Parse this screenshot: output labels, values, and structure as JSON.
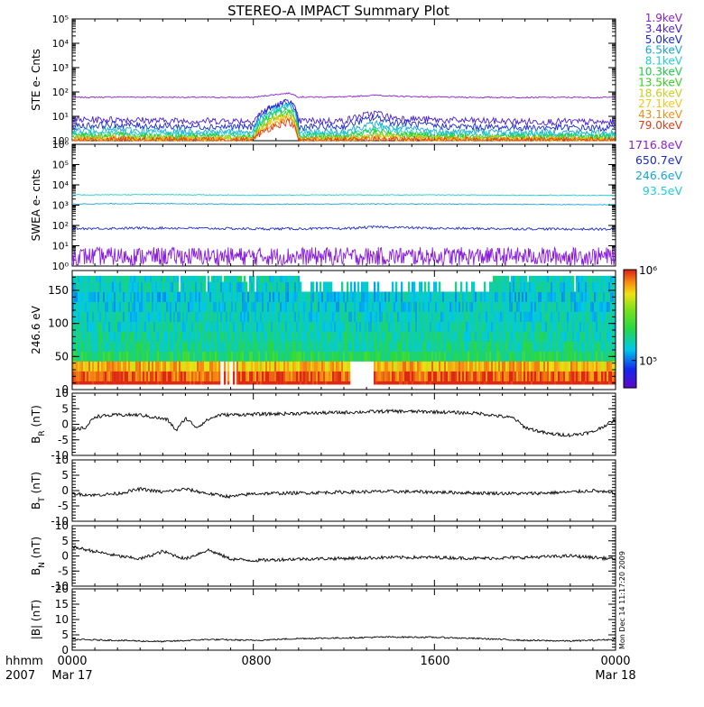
{
  "title": "STEREO-A IMPACT Summary Plot",
  "footer": {
    "time_label": "hhmm",
    "year": "2007",
    "time_ticks": [
      "0000",
      "0800",
      "1600",
      "0000"
    ],
    "date_start": "Mar 17",
    "date_end": "Mar 18"
  },
  "credit": "Mon Dec 14 11:17:20 2009",
  "colors": {
    "ste": [
      "#8a1ddb",
      "#4b1ed6",
      "#1a2ad0",
      "#13a6d9",
      "#1ccfd6",
      "#1ccc45",
      "#32d11c",
      "#c7d01b",
      "#f5c619",
      "#f08d16",
      "#e03a17"
    ],
    "swea": [
      "#8a1ddb",
      "#1a2ad0",
      "#13a6d9",
      "#1ccfd6"
    ]
  },
  "chart_data": [
    {
      "type": "line",
      "panel": "ste",
      "ylabel": "STE e- Cnts",
      "yscale": "log",
      "ylim": [
        1,
        100000
      ],
      "ytick_labels": [
        "10⁰",
        "10¹",
        "10²",
        "10³",
        "10⁴",
        "10⁵"
      ],
      "x_units": "hours since Mar 17 0000",
      "xlim": [
        0,
        24
      ],
      "series": [
        {
          "name": "1.9keV",
          "x": [
            0,
            2,
            4,
            6,
            8,
            9.6,
            10,
            12,
            13.5,
            14,
            16,
            18,
            20,
            22,
            24
          ],
          "values": [
            60,
            62,
            61,
            60,
            60,
            90,
            62,
            62,
            75,
            68,
            62,
            60,
            60,
            60,
            60
          ]
        },
        {
          "name": "3.4keV",
          "x": [
            0,
            2,
            4,
            6,
            8,
            9.6,
            10,
            12,
            13.5,
            14,
            16,
            18,
            20,
            22,
            24
          ],
          "values": [
            7,
            7.5,
            6.5,
            6.5,
            6.5,
            40,
            6.5,
            6.5,
            14,
            9,
            7,
            6.5,
            6,
            6,
            5.5
          ]
        },
        {
          "name": "5.0keV",
          "x": [
            0,
            2,
            4,
            6,
            8,
            9.6,
            10,
            12,
            13.5,
            14,
            16,
            18,
            20,
            22,
            24
          ],
          "values": [
            4,
            4.5,
            3.8,
            3.8,
            3.6,
            40,
            3.6,
            3.8,
            9,
            6,
            4,
            3.6,
            3.5,
            3.4,
            3.2
          ]
        },
        {
          "name": "6.5keV",
          "x": [
            0,
            2,
            4,
            6,
            8,
            9.6,
            10,
            12,
            13.5,
            14,
            16,
            18,
            20,
            22,
            24
          ],
          "values": [
            2.6,
            2.8,
            2.4,
            2.4,
            2.3,
            30,
            2.3,
            2.4,
            5,
            3.5,
            2.5,
            2.3,
            2.2,
            2.2,
            2
          ]
        },
        {
          "name": "8.1keV",
          "x": [
            0,
            2,
            4,
            6,
            8,
            9.6,
            10,
            12,
            13.5,
            14,
            16,
            18,
            20,
            22,
            24
          ],
          "values": [
            2,
            2.1,
            1.9,
            1.9,
            1.8,
            25,
            1.8,
            1.9,
            3.5,
            2.6,
            2,
            1.8,
            1.8,
            1.7,
            1.6
          ]
        },
        {
          "name": "10.3keV",
          "x": [
            0,
            2,
            4,
            6,
            8,
            9.6,
            10,
            12,
            13.5,
            14,
            16,
            18,
            20,
            22,
            24
          ],
          "values": [
            1.6,
            1.7,
            1.5,
            1.5,
            1.5,
            20,
            1.5,
            1.5,
            2.6,
            2,
            1.6,
            1.5,
            1.5,
            1.4,
            1.4
          ]
        },
        {
          "name": "13.5keV",
          "x": [
            0,
            2,
            4,
            6,
            8,
            9.6,
            10,
            12,
            13.5,
            14,
            16,
            18,
            20,
            22,
            24
          ],
          "values": [
            1.4,
            1.5,
            1.3,
            1.3,
            1.3,
            15,
            1.3,
            1.3,
            2,
            1.7,
            1.4,
            1.3,
            1.3,
            1.3,
            1.2
          ]
        },
        {
          "name": "18.6keV",
          "x": [
            0,
            2,
            4,
            6,
            8,
            9.6,
            10,
            12,
            13.5,
            14,
            16,
            18,
            20,
            22,
            24
          ],
          "values": [
            1.2,
            1.3,
            1.2,
            1.2,
            1.2,
            12,
            1.2,
            1.2,
            1.6,
            1.4,
            1.2,
            1.2,
            1.2,
            1.1,
            1.1
          ]
        },
        {
          "name": "27.1keV",
          "x": [
            0,
            2,
            4,
            6,
            8,
            9.6,
            10,
            12,
            13.5,
            14,
            16,
            18,
            20,
            22,
            24
          ],
          "values": [
            1.1,
            1.2,
            1.1,
            1.1,
            1.1,
            10,
            1.1,
            1.1,
            1.3,
            1.2,
            1.1,
            1.1,
            1.1,
            1.1,
            1.05
          ]
        },
        {
          "name": "43.1keV",
          "x": [
            0,
            2,
            4,
            6,
            8,
            9.6,
            10,
            12,
            13.5,
            14,
            16,
            18,
            20,
            22,
            24
          ],
          "values": [
            1.05,
            1.1,
            1.05,
            1.05,
            1.05,
            8,
            1.05,
            1.05,
            1.2,
            1.1,
            1.05,
            1.05,
            1.05,
            1.05,
            1.02
          ]
        },
        {
          "name": "79.0keV",
          "x": [
            0,
            2,
            4,
            6,
            8,
            9.6,
            10,
            12,
            13.5,
            14,
            16,
            18,
            20,
            22,
            24
          ],
          "values": [
            1.02,
            1.05,
            1.02,
            1.02,
            1.02,
            6,
            1.02,
            1.02,
            1.1,
            1.05,
            1.02,
            1.02,
            1.02,
            1.02,
            1.01
          ]
        }
      ]
    },
    {
      "type": "line",
      "panel": "swea",
      "ylabel": "SWEA e- cnts",
      "yscale": "log",
      "ylim": [
        1,
        1000000
      ],
      "ytick_labels": [
        "10⁰",
        "10¹",
        "10²",
        "10³",
        "10⁴",
        "10⁵",
        "10⁶"
      ],
      "x_units": "hours since Mar 17 0000",
      "xlim": [
        0,
        24
      ],
      "series": [
        {
          "name": "1716.8eV",
          "x": [
            0,
            4,
            8,
            12,
            16,
            20,
            24
          ],
          "values": [
            3,
            3,
            3,
            3,
            3,
            3,
            3
          ]
        },
        {
          "name": "650.7eV",
          "x": [
            0,
            4,
            8,
            12,
            13.5,
            16,
            20,
            24
          ],
          "values": [
            70,
            75,
            68,
            70,
            85,
            72,
            68,
            65
          ]
        },
        {
          "name": "246.6eV",
          "x": [
            0,
            4,
            8,
            12,
            16,
            20,
            24
          ],
          "values": [
            1150,
            1200,
            1100,
            1150,
            1150,
            1100,
            1050
          ]
        },
        {
          "name": "93.5eV",
          "x": [
            0,
            4,
            8,
            12,
            16,
            20,
            24
          ],
          "values": [
            3200,
            3300,
            3100,
            3200,
            3200,
            3100,
            3000
          ]
        }
      ]
    },
    {
      "type": "heatmap",
      "panel": "pad",
      "ylabel": "246.6 eV",
      "ylim": [
        0,
        180
      ],
      "yticks": [
        0,
        50,
        100,
        150
      ],
      "colorbar": {
        "scale": "log",
        "range": [
          50000,
          1000000
        ],
        "tick_labels": [
          "10⁵",
          "10⁶"
        ]
      },
      "x_units": "hours since Mar 17 0000",
      "xlim": [
        0,
        24
      ],
      "description_bins": {
        "pitch_angle": [
          5,
          20,
          35,
          50,
          65,
          80,
          95,
          110,
          125,
          140,
          155,
          170
        ],
        "time": [
          0,
          2,
          4,
          6,
          8,
          10,
          12,
          14,
          16,
          18,
          20,
          22,
          24
        ],
        "level_by_pitch": [
          0.88,
          0.82,
          0.55,
          0.48,
          0.42,
          0.4,
          0.38,
          0.37,
          0.35,
          0.34,
          0.36,
          0.38
        ]
      }
    },
    {
      "type": "line",
      "panel": "br",
      "ylabel": "B_R (nT)",
      "ylim": [
        -10,
        10
      ],
      "yticks": [
        -10,
        -5,
        0,
        5,
        10
      ],
      "x_units": "hours since Mar 17 0000",
      "xlim": [
        0,
        24
      ],
      "x": [
        0,
        0.6,
        1,
        2,
        3,
        4.2,
        4.6,
        5,
        5.5,
        6,
        6.5,
        8,
        10,
        12,
        14,
        16,
        18,
        19.5,
        20,
        21,
        22,
        23,
        24
      ],
      "values": [
        -2,
        -1,
        2.5,
        3,
        3,
        1.5,
        -2,
        2,
        -1,
        1.5,
        3,
        3.2,
        3.5,
        3.8,
        4.2,
        4,
        3.5,
        2,
        -1,
        -3,
        -3.5,
        -2.5,
        1.5
      ]
    },
    {
      "type": "line",
      "panel": "bt",
      "ylabel": "B_T (nT)",
      "ylim": [
        -10,
        10
      ],
      "yticks": [
        -10,
        -5,
        0,
        5,
        10
      ],
      "x_units": "hours since Mar 17 0000",
      "xlim": [
        0,
        24
      ],
      "x": [
        0,
        1,
        2,
        3,
        4,
        5,
        6,
        7,
        8,
        10,
        12,
        14,
        16,
        18,
        20,
        22,
        23,
        24
      ],
      "values": [
        -1,
        -1.5,
        -1,
        0.5,
        -0.5,
        0.5,
        -1,
        -2,
        -1,
        -0.8,
        -0.5,
        -0.3,
        -0.5,
        -0.8,
        -1,
        -0.5,
        0,
        -1
      ]
    },
    {
      "type": "line",
      "panel": "bn",
      "ylabel": "B_N (nT)",
      "ylim": [
        -10,
        10
      ],
      "yticks": [
        -10,
        -5,
        0,
        5,
        10
      ],
      "x_units": "hours since Mar 17 0000",
      "xlim": [
        0,
        24
      ],
      "x": [
        0,
        1,
        2,
        3,
        4,
        5,
        6,
        7,
        8,
        10,
        12,
        14,
        16,
        18,
        20,
        22,
        24
      ],
      "values": [
        3,
        1.5,
        0,
        -1,
        1.5,
        -1,
        2,
        -1,
        -1.5,
        -1,
        -0.8,
        -0.5,
        -0.5,
        -0.8,
        -0.5,
        0,
        -1
      ]
    },
    {
      "type": "line",
      "panel": "bmag",
      "ylabel": "|B| (nT)",
      "ylim": [
        0,
        20
      ],
      "yticks": [
        0,
        5,
        10,
        15,
        20
      ],
      "x_units": "hours since Mar 17 0000",
      "xlim": [
        0,
        24
      ],
      "x": [
        0,
        2,
        4,
        6,
        8,
        10,
        12,
        14,
        16,
        18,
        20,
        22,
        24
      ],
      "values": [
        3.5,
        3.2,
        2.8,
        3.5,
        3.2,
        3.8,
        4,
        4.3,
        4.2,
        3.8,
        3.2,
        3,
        3.5
      ]
    }
  ]
}
